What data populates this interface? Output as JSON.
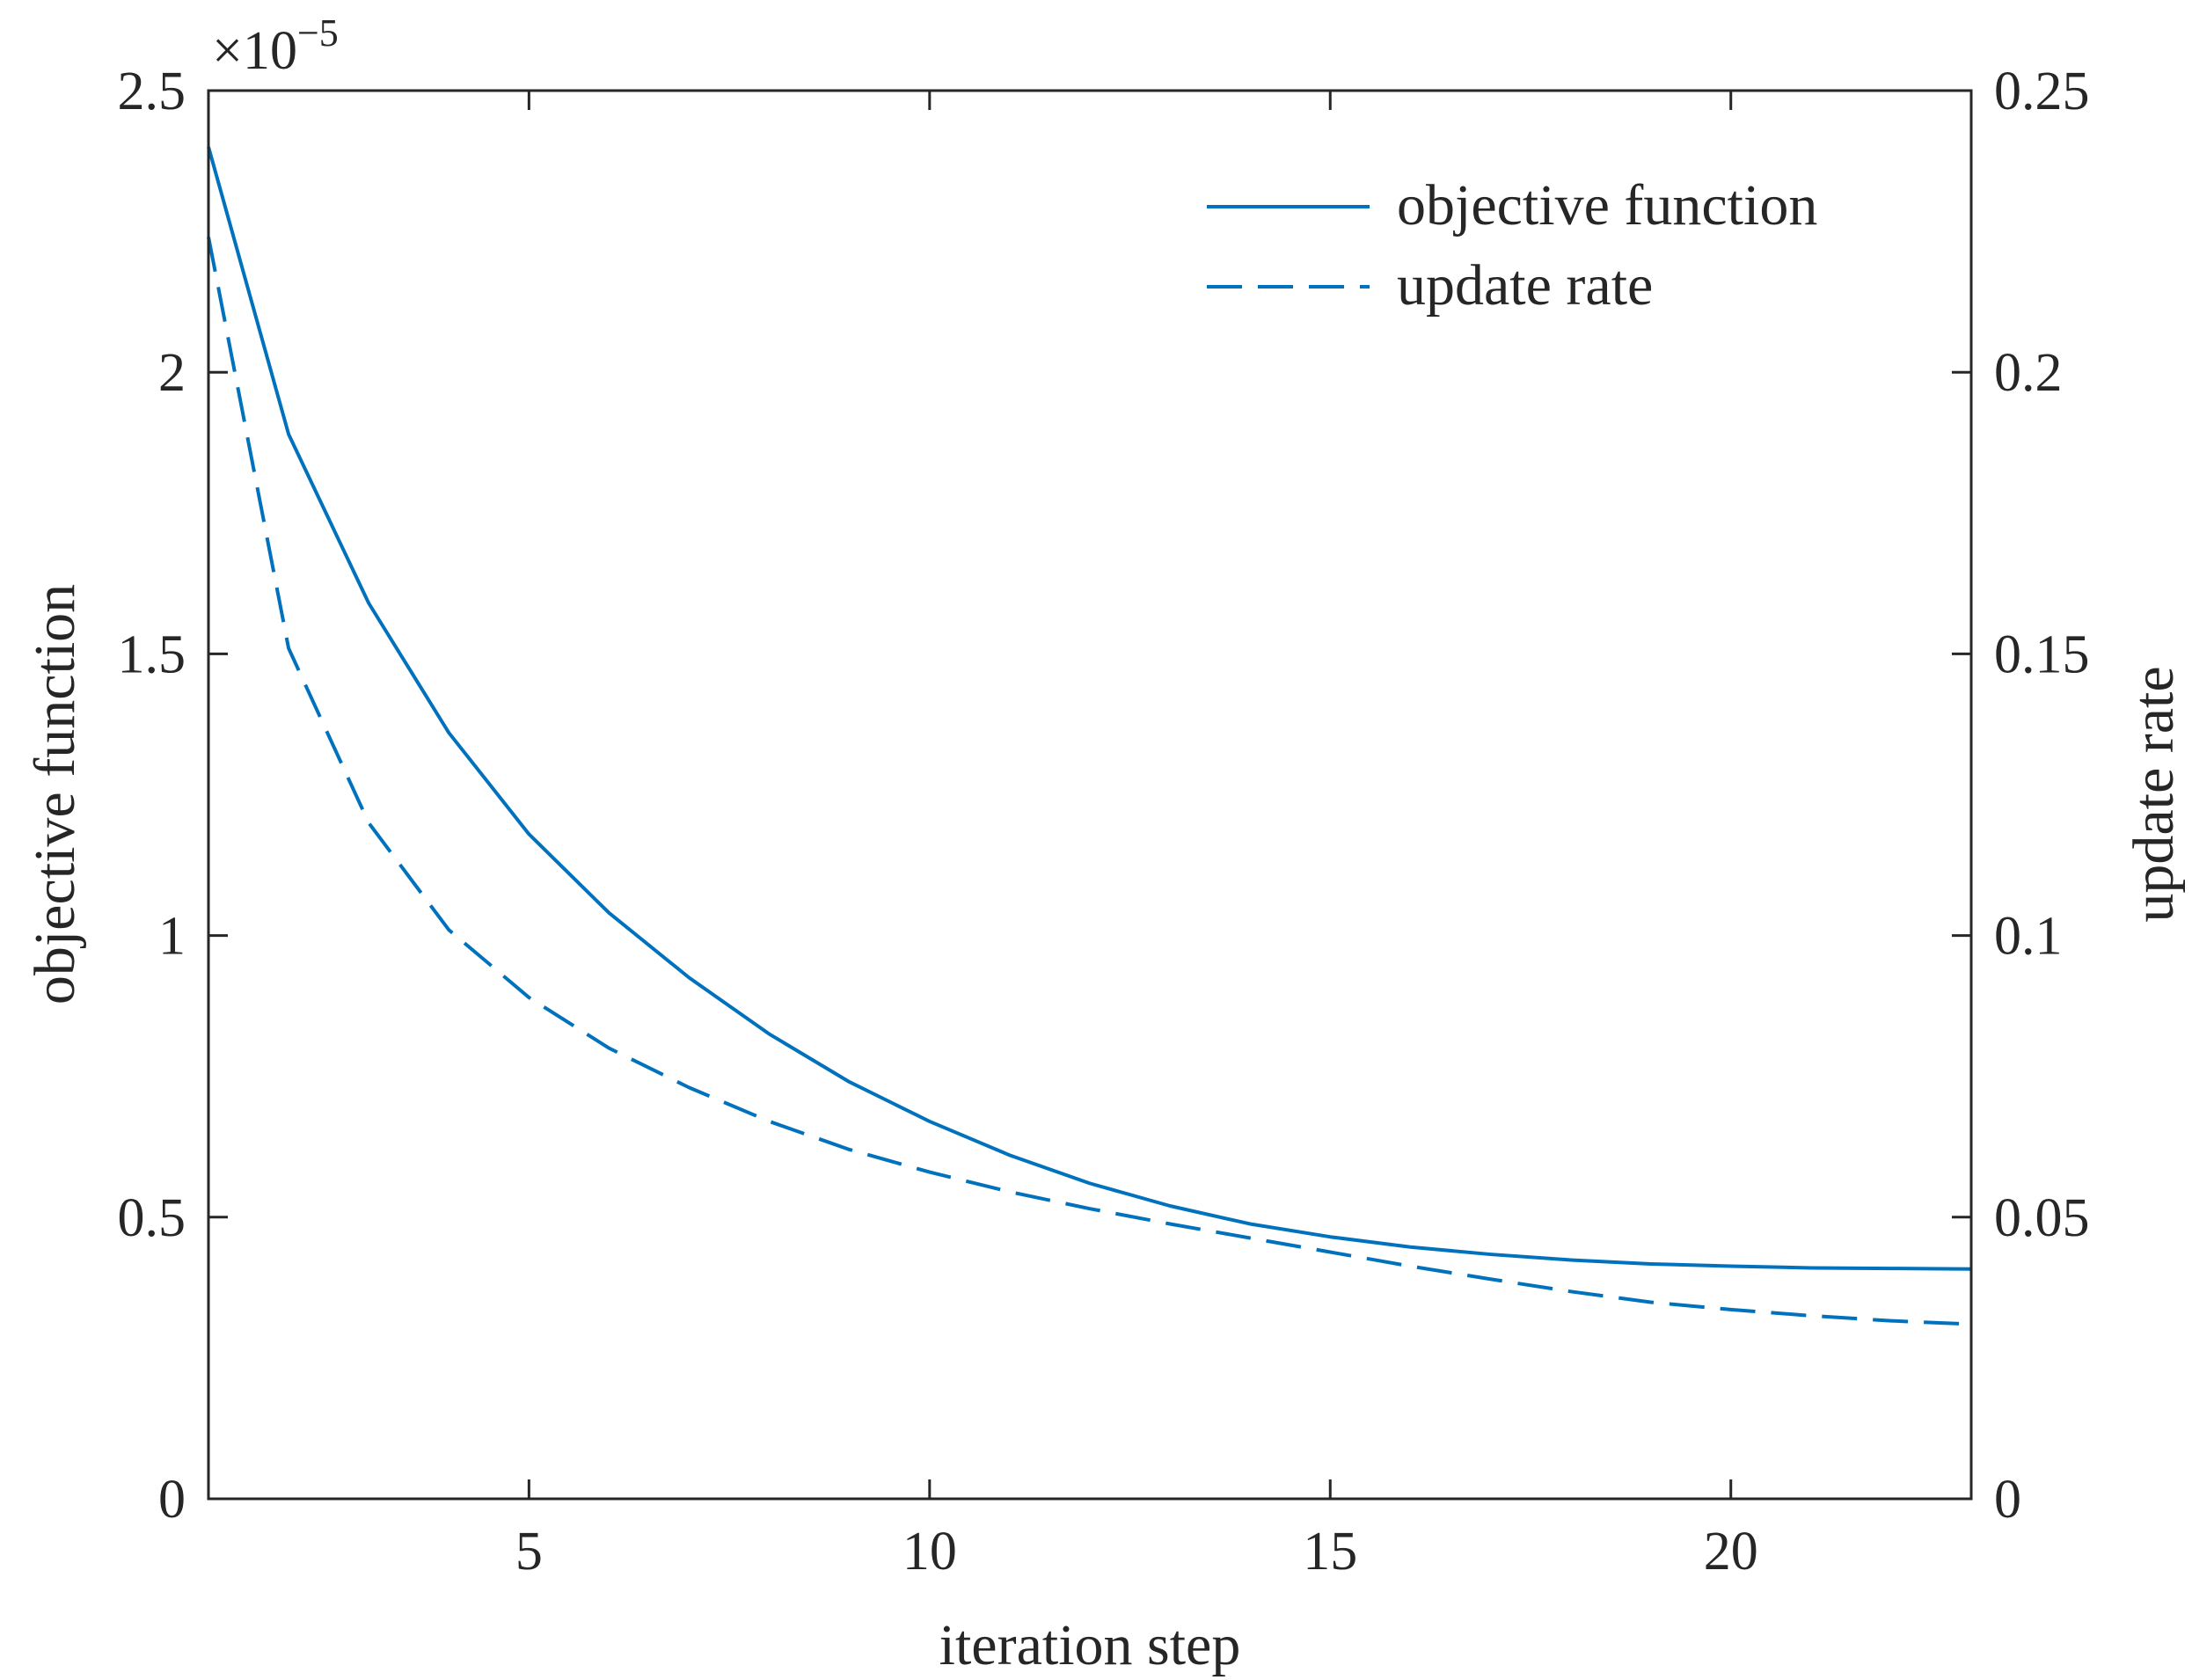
{
  "chart_data": {
    "type": "line",
    "title": "",
    "xlabel": "iteration step",
    "ylabel_left": "objective function",
    "ylabel_right": "update rate",
    "left_axis_exponent": {
      "base": "×10",
      "power": "−5"
    },
    "xlim": [
      1,
      23
    ],
    "ylim_left": [
      0,
      2.5
    ],
    "ylim_right": [
      0,
      0.25
    ],
    "x_ticks": [
      5,
      10,
      15,
      20
    ],
    "x_tick_labels": [
      "5",
      "10",
      "15",
      "20"
    ],
    "y_left_ticks": [
      0,
      0.5,
      1,
      1.5,
      2,
      2.5
    ],
    "y_left_tick_labels": [
      "0",
      "0.5",
      "1",
      "1.5",
      "2",
      "2.5"
    ],
    "y_right_ticks": [
      0,
      0.05,
      0.1,
      0.15,
      0.2,
      0.25
    ],
    "y_right_tick_labels": [
      "0",
      "0.05",
      "0.1",
      "0.15",
      "0.2",
      "0.25"
    ],
    "x": [
      1,
      2,
      3,
      4,
      5,
      6,
      7,
      8,
      9,
      10,
      11,
      12,
      13,
      14,
      15,
      16,
      17,
      18,
      19,
      20,
      21,
      22,
      23
    ],
    "series": [
      {
        "name": "objective function",
        "axis": "left",
        "style": "solid",
        "color": "#0072bd",
        "values": [
          2.4,
          1.89,
          1.59,
          1.36,
          1.18,
          1.04,
          0.925,
          0.825,
          0.74,
          0.67,
          0.61,
          0.56,
          0.52,
          0.488,
          0.465,
          0.447,
          0.434,
          0.424,
          0.417,
          0.413,
          0.41,
          0.409,
          0.408
        ]
      },
      {
        "name": "update rate",
        "axis": "right",
        "style": "dashed",
        "color": "#0072bd",
        "values": [
          0.224,
          0.151,
          0.12,
          0.101,
          0.089,
          0.08,
          0.073,
          0.067,
          0.062,
          0.058,
          0.0545,
          0.0515,
          0.0488,
          0.0463,
          0.0438,
          0.0413,
          0.039,
          0.0368,
          0.0349,
          0.0336,
          0.0325,
          0.0316,
          0.031
        ]
      }
    ],
    "legend": {
      "position": "top-right",
      "entries": [
        "objective function",
        "update rate"
      ]
    }
  }
}
